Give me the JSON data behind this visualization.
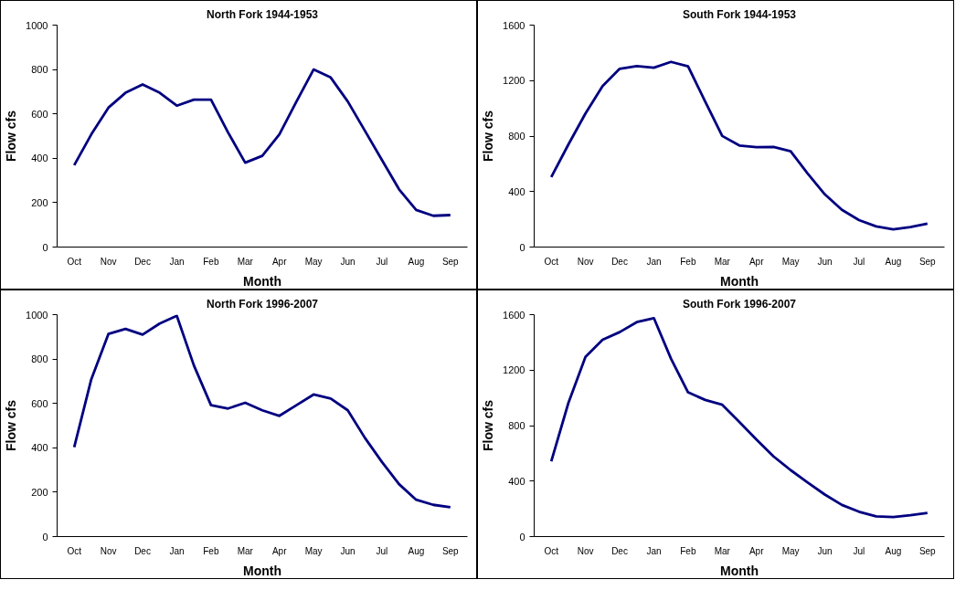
{
  "chart_data": [
    {
      "type": "line",
      "title": "North Fork 1944-1953",
      "xlabel": "Month",
      "ylabel": "Flow cfs",
      "ylim": [
        0,
        1000
      ],
      "yticks": [
        0,
        200,
        400,
        600,
        800,
        1000
      ],
      "categories": [
        "Oct",
        null,
        "Nov",
        null,
        "Dec",
        null,
        "Jan",
        null,
        "Feb",
        null,
        "Mar",
        null,
        "Apr",
        null,
        "May",
        null,
        "Jun",
        null,
        "Jul",
        null,
        "Aug",
        null,
        "Sep"
      ],
      "series": [
        {
          "color": "#000080",
          "values": [
            369,
            508,
            628,
            695,
            733,
            695,
            637,
            664,
            664,
            516,
            380,
            411,
            508,
            656,
            800,
            764,
            656,
            524,
            392,
            260,
            167,
            141,
            144
          ]
        }
      ]
    },
    {
      "type": "line",
      "title": "South Fork 1944-1953",
      "xlabel": "Month",
      "ylabel": "Flow cfs",
      "ylim": [
        0,
        1600
      ],
      "yticks": [
        0,
        400,
        800,
        1200,
        1600
      ],
      "categories": [
        "Oct",
        null,
        "Nov",
        null,
        "Dec",
        null,
        "Jan",
        null,
        "Feb",
        null,
        "Mar",
        null,
        "Apr",
        null,
        "May",
        null,
        "Jun",
        null,
        "Jul",
        null,
        "Aug",
        null,
        "Sep"
      ],
      "series": [
        {
          "color": "#000080",
          "values": [
            504,
            739,
            963,
            1161,
            1285,
            1305,
            1293,
            1335,
            1303,
            1050,
            801,
            732,
            720,
            722,
            690,
            529,
            380,
            268,
            194,
            149,
            127,
            144,
            169
          ]
        }
      ]
    },
    {
      "type": "line",
      "title": "North Fork 1996-2007",
      "xlabel": "Month",
      "ylabel": "Flow cfs",
      "ylim": [
        0,
        1000
      ],
      "yticks": [
        0,
        200,
        400,
        600,
        800,
        1000
      ],
      "categories": [
        "Oct",
        null,
        "Nov",
        null,
        "Dec",
        null,
        "Jan",
        null,
        "Feb",
        null,
        "Mar",
        null,
        "Apr",
        null,
        "May",
        null,
        "Jun",
        null,
        "Jul",
        null,
        "Aug",
        null,
        "Sep"
      ],
      "series": [
        {
          "color": "#000080",
          "values": [
            403,
            709,
            913,
            936,
            910,
            960,
            995,
            771,
            592,
            577,
            603,
            569,
            544,
            592,
            640,
            622,
            569,
            445,
            336,
            236,
            166,
            143,
            132
          ]
        }
      ]
    },
    {
      "type": "line",
      "title": "South Fork 1996-2007",
      "xlabel": "Month",
      "ylabel": "Flow cfs",
      "ylim": [
        0,
        1600
      ],
      "yticks": [
        0,
        400,
        800,
        1200,
        1600
      ],
      "categories": [
        "Oct",
        null,
        "Nov",
        null,
        "Dec",
        null,
        "Jan",
        null,
        "Feb",
        null,
        "Mar",
        null,
        "Apr",
        null,
        "May",
        null,
        "Jun",
        null,
        "Jul",
        null,
        "Aug",
        null,
        "Sep"
      ],
      "series": [
        {
          "color": "#000080",
          "values": [
            543,
            963,
            1295,
            1419,
            1474,
            1546,
            1575,
            1283,
            1040,
            985,
            950,
            826,
            700,
            578,
            479,
            390,
            303,
            228,
            179,
            146,
            141,
            154,
            171
          ]
        }
      ]
    }
  ]
}
